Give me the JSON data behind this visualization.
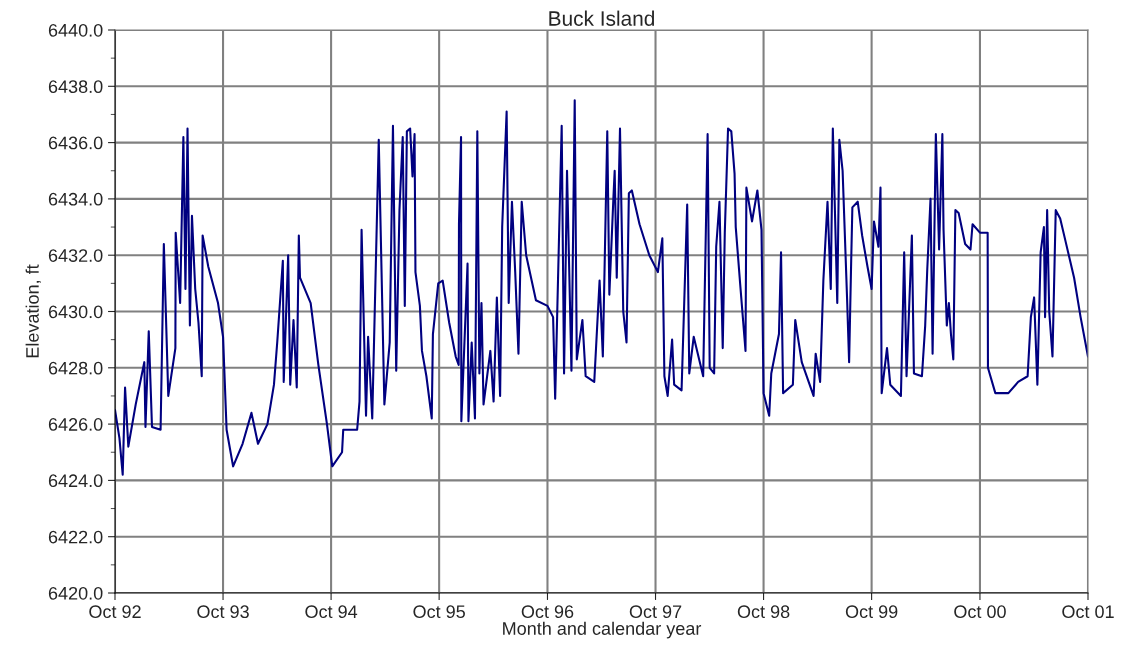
{
  "chart_data": {
    "type": "line",
    "title": "Buck Island",
    "xlabel": "Month and calendar year",
    "ylabel": "Elevation, ft",
    "xlim": [
      "1992-10-01",
      "2001-10-01"
    ],
    "xticks": [
      {
        "value": "1992-10-01",
        "label": "Oct 92"
      },
      {
        "value": "1993-10-01",
        "label": "Oct 93"
      },
      {
        "value": "1994-10-01",
        "label": "Oct 94"
      },
      {
        "value": "1995-10-01",
        "label": "Oct 95"
      },
      {
        "value": "1996-10-01",
        "label": "Oct 96"
      },
      {
        "value": "1997-10-01",
        "label": "Oct 97"
      },
      {
        "value": "1998-10-01",
        "label": "Oct 98"
      },
      {
        "value": "1999-10-01",
        "label": "Oct 99"
      },
      {
        "value": "2000-10-01",
        "label": "Oct 00"
      },
      {
        "value": "2001-10-01",
        "label": "Oct 01"
      }
    ],
    "ylim": [
      6420,
      6440
    ],
    "yticks": [
      {
        "value": 6420,
        "label": "6420.0"
      },
      {
        "value": 6421,
        "label": null
      },
      {
        "value": 6422,
        "label": "6422.0"
      },
      {
        "value": 6423,
        "label": null
      },
      {
        "value": 6424,
        "label": "6424.0"
      },
      {
        "value": 6425,
        "label": null
      },
      {
        "value": 6426,
        "label": "6426.0"
      },
      {
        "value": 6427,
        "label": null
      },
      {
        "value": 6428,
        "label": "6428.0"
      },
      {
        "value": 6429,
        "label": null
      },
      {
        "value": 6430,
        "label": "6430.0"
      },
      {
        "value": 6431,
        "label": null
      },
      {
        "value": 6432,
        "label": "6432.0"
      },
      {
        "value": 6433,
        "label": null
      },
      {
        "value": 6434,
        "label": "6434.0"
      },
      {
        "value": 6435,
        "label": null
      },
      {
        "value": 6436,
        "label": "6436.0"
      },
      {
        "value": 6437,
        "label": null
      },
      {
        "value": 6438,
        "label": "6438.0"
      },
      {
        "value": 6439,
        "label": null
      },
      {
        "value": 6440,
        "label": "6440.0"
      }
    ],
    "grid": true,
    "marker": "none",
    "line_style": "solid",
    "series": [
      {
        "color": "#000080",
        "x": [
          "1992-10-01",
          "1992-10-16",
          "1992-10-27",
          "1992-11-04",
          "1992-11-15",
          "1992-12-10",
          "1993-01-08",
          "1993-01-12",
          "1993-01-23",
          "1993-02-03",
          "1993-03-04",
          "1993-03-15",
          "1993-03-30",
          "1993-04-23",
          "1993-04-24",
          "1993-05-09",
          "1993-05-20",
          "1993-05-27",
          "1993-06-03",
          "1993-06-11",
          "1993-06-18",
          "1993-06-29",
          "1993-07-10",
          "1993-07-21",
          "1993-07-24",
          "1993-08-12",
          "1993-09-14",
          "1993-10-01",
          "1993-10-13",
          "1993-11-04",
          "1993-12-06",
          "1994-01-05",
          "1994-01-27",
          "1994-02-28",
          "1994-03-22",
          "1994-04-02",
          "1994-04-21",
          "1994-04-24",
          "1994-05-09",
          "1994-05-16",
          "1994-05-27",
          "1994-06-07",
          "1994-06-14",
          "1994-06-18",
          "1994-07-24",
          "1994-08-19",
          "1994-09-17",
          "1994-10-05",
          "1994-11-07",
          "1994-11-11",
          "1994-12-28",
          "1995-01-05",
          "1995-01-12",
          "1995-01-27",
          "1995-02-03",
          "1995-02-17",
          "1995-03-11",
          "1995-03-30",
          "1995-04-17",
          "1995-04-28",
          "1995-05-09",
          "1995-05-20",
          "1995-05-31",
          "1995-06-07",
          "1995-06-14",
          "1995-06-25",
          "1995-07-03",
          "1995-07-10",
          "1995-07-13",
          "1995-07-28",
          "1995-08-04",
          "1995-08-19",
          "1995-09-06",
          "1995-09-10",
          "1995-09-28",
          "1995-10-13",
          "1995-11-04",
          "1995-11-26",
          "1995-12-06",
          "1995-12-07",
          "1995-12-14",
          "1995-12-15",
          "1996-01-05",
          "1996-01-08",
          "1996-01-19",
          "1996-01-30",
          "1996-02-07",
          "1996-02-14",
          "1996-02-21",
          "1996-02-28",
          "1996-03-22",
          "1996-04-02",
          "1996-04-13",
          "1996-04-24",
          "1996-05-01",
          "1996-05-16",
          "1996-05-23",
          "1996-06-03",
          "1996-06-14",
          "1996-06-25",
          "1996-07-06",
          "1996-07-21",
          "1996-08-23",
          "1996-10-01",
          "1996-10-20",
          "1996-10-27",
          "1996-11-18",
          "1996-11-26",
          "1996-12-06",
          "1996-12-21",
          "1997-01-01",
          "1997-01-08",
          "1997-01-27",
          "1997-02-07",
          "1997-03-08",
          "1997-03-26",
          "1997-04-06",
          "1997-04-21",
          "1997-04-28",
          "1997-05-12",
          "1997-05-16",
          "1997-05-23",
          "1997-06-03",
          "1997-06-14",
          "1997-06-25",
          "1997-07-03",
          "1997-07-13",
          "1997-08-08",
          "1997-09-10",
          "1997-10-09",
          "1997-10-24",
          "1997-10-31",
          "1997-11-11",
          "1997-11-26",
          "1997-12-03",
          "1997-12-28",
          "1998-01-16",
          "1998-01-23",
          "1998-02-07",
          "1998-03-11",
          "1998-03-26",
          "1998-04-02",
          "1998-04-17",
          "1998-04-24",
          "1998-05-05",
          "1998-05-16",
          "1998-05-23",
          "1998-06-03",
          "1998-06-14",
          "1998-06-25",
          "1998-06-29",
          "1998-07-13",
          "1998-08-01",
          "1998-08-04",
          "1998-08-23",
          "1998-09-10",
          "1998-09-24",
          "1998-10-01",
          "1998-10-20",
          "1998-10-27",
          "1998-11-22",
          "1998-11-29",
          "1998-12-06",
          "1999-01-08",
          "1999-01-16",
          "1999-02-07",
          "1999-03-19",
          "1999-03-26",
          "1999-04-10",
          "1999-04-21",
          "1999-05-05",
          "1999-05-16",
          "1999-05-23",
          "1999-06-07",
          "1999-06-14",
          "1999-06-25",
          "1999-07-10",
          "1999-07-17",
          "1999-07-24",
          "1999-07-28",
          "1999-08-15",
          "1999-08-30",
          "1999-09-17",
          "1999-10-01",
          "1999-10-09",
          "1999-10-24",
          "1999-10-31",
          "1999-11-04",
          "1999-11-22",
          "1999-12-03",
          "2000-01-08",
          "2000-01-19",
          "2000-01-27",
          "2000-02-14",
          "2000-02-21",
          "2000-03-19",
          "2000-03-30",
          "2000-04-06",
          "2000-04-17",
          "2000-04-24",
          "2000-05-05",
          "2000-05-16",
          "2000-05-27",
          "2000-05-31",
          "2000-06-11",
          "2000-06-18",
          "2000-06-25",
          "2000-07-03",
          "2000-07-10",
          "2000-07-21",
          "2000-08-12",
          "2000-08-30",
          "2000-09-06",
          "2000-10-01",
          "2000-10-27",
          "2000-10-28",
          "2000-11-22",
          "2001-01-05",
          "2001-02-07",
          "2001-03-11",
          "2001-03-22",
          "2001-04-02",
          "2001-04-13",
          "2001-04-24",
          "2001-05-05",
          "2001-05-09",
          "2001-05-16",
          "2001-05-23",
          "2001-06-03",
          "2001-06-14",
          "2001-06-29",
          "2001-07-17",
          "2001-08-15",
          "2001-09-06",
          "2001-10-01"
        ],
        "values": [
          6426.5,
          6425.5,
          6424.2,
          6427.3,
          6425.2,
          6426.7,
          6428.2,
          6425.9,
          6429.3,
          6425.9,
          6425.8,
          6432.4,
          6427.0,
          6428.7,
          6432.8,
          6430.3,
          6436.2,
          6430.8,
          6436.5,
          6429.5,
          6433.4,
          6430.8,
          6429.6,
          6427.7,
          6432.7,
          6431.6,
          6430.3,
          6429.1,
          6425.8,
          6424.5,
          6425.3,
          6426.4,
          6425.3,
          6426.0,
          6427.4,
          6428.9,
          6431.8,
          6427.5,
          6432.0,
          6427.4,
          6429.7,
          6427.3,
          6432.7,
          6431.2,
          6430.3,
          6428.1,
          6426.0,
          6424.5,
          6425.0,
          6425.8,
          6425.8,
          6426.8,
          6432.9,
          6426.3,
          6429.1,
          6426.2,
          6436.1,
          6426.7,
          6428.9,
          6436.6,
          6427.9,
          6433.6,
          6436.2,
          6430.2,
          6436.4,
          6436.5,
          6434.8,
          6436.3,
          6431.4,
          6430.2,
          6428.6,
          6427.7,
          6426.2,
          6429.2,
          6431.0,
          6431.1,
          6429.6,
          6428.4,
          6428.1,
          6433.1,
          6436.2,
          6426.1,
          6431.7,
          6426.1,
          6428.9,
          6426.2,
          6436.4,
          6427.8,
          6430.3,
          6426.7,
          6428.6,
          6426.8,
          6430.5,
          6427.0,
          6433.0,
          6437.1,
          6430.3,
          6433.9,
          6431.4,
          6428.5,
          6433.9,
          6432.0,
          6430.4,
          6430.2,
          6429.8,
          6426.9,
          6436.6,
          6427.8,
          6435.0,
          6427.9,
          6437.5,
          6428.3,
          6429.7,
          6427.7,
          6427.5,
          6431.1,
          6428.4,
          6436.4,
          6430.6,
          6434.1,
          6435.0,
          6431.2,
          6436.5,
          6430.0,
          6428.9,
          6434.2,
          6434.3,
          6433.1,
          6432.0,
          6431.4,
          6432.6,
          6427.7,
          6427.0,
          6429.0,
          6427.4,
          6427.2,
          6433.8,
          6427.8,
          6429.1,
          6427.7,
          6436.3,
          6428.0,
          6427.8,
          6432.3,
          6433.9,
          6428.7,
          6432.8,
          6436.5,
          6436.4,
          6434.9,
          6433.0,
          6431.1,
          6428.6,
          6434.4,
          6433.2,
          6434.3,
          6432.9,
          6427.1,
          6426.3,
          6427.8,
          6429.2,
          6432.1,
          6427.1,
          6427.4,
          6429.7,
          6428.2,
          6427.0,
          6428.5,
          6427.5,
          6431.1,
          6433.9,
          6430.8,
          6436.5,
          6430.3,
          6436.1,
          6435.0,
          6430.5,
          6428.2,
          6431.8,
          6433.7,
          6433.9,
          6432.7,
          6431.6,
          6430.8,
          6433.2,
          6432.3,
          6434.4,
          6427.1,
          6428.7,
          6427.4,
          6427.0,
          6432.1,
          6427.7,
          6432.7,
          6427.8,
          6427.7,
          6429.5,
          6431.5,
          6434.0,
          6428.5,
          6436.3,
          6432.2,
          6436.3,
          6432.9,
          6429.5,
          6430.3,
          6429.2,
          6428.3,
          6433.6,
          6433.5,
          6432.4,
          6432.2,
          6433.1,
          6432.8,
          6432.8,
          6428.0,
          6427.1,
          6427.1,
          6427.5,
          6427.7,
          6429.8,
          6430.5,
          6427.4,
          6432.1,
          6433.0,
          6429.8,
          6433.6,
          6430.0,
          6428.4,
          6433.6,
          6433.3,
          6432.5,
          6431.2,
          6429.8,
          6428.4
        ]
      }
    ]
  }
}
